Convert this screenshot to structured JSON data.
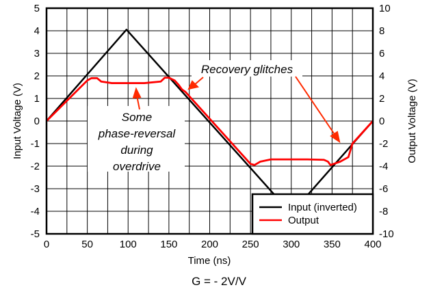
{
  "chart_data": {
    "type": "line",
    "xlabel": "Time (ns)",
    "ylabel": "Input Voltage (V)",
    "y2label": "Output Voltage (V)",
    "xlim": [
      0,
      400
    ],
    "ylim": [
      -5,
      5
    ],
    "y2lim": [
      -10,
      10
    ],
    "xticks": [
      0,
      50,
      100,
      150,
      200,
      250,
      300,
      350,
      400
    ],
    "yticks": [
      -5,
      -4,
      -3,
      -2,
      -1,
      0,
      1,
      2,
      3,
      4,
      5
    ],
    "y2ticks": [
      -10,
      -8,
      -6,
      -4,
      -2,
      0,
      2,
      4,
      6,
      8,
      10
    ],
    "grid": true,
    "legend_position": "bottom-right",
    "series": [
      {
        "name": "Input (inverted)",
        "axis": "left",
        "color": "#000000",
        "x": [
          0,
          98,
          300,
          400
        ],
        "y": [
          0,
          4.05,
          -4.1,
          0
        ]
      },
      {
        "name": "Output",
        "axis": "right",
        "color": "#ff0000",
        "x": [
          0,
          50,
          55,
          62,
          67,
          80,
          120,
          140,
          145,
          150,
          157,
          162,
          166,
          170,
          250,
          255,
          262,
          275,
          320,
          340,
          345,
          348,
          360,
          370,
          375,
          400
        ],
        "y": [
          0,
          3.6,
          3.8,
          3.8,
          3.5,
          3.36,
          3.36,
          3.5,
          3.84,
          3.84,
          3.6,
          3.2,
          2.8,
          2.6,
          -3.8,
          -3.9,
          -3.6,
          -3.4,
          -3.4,
          -3.44,
          -3.6,
          -3.9,
          -3.6,
          -3.2,
          -2.0,
          0
        ]
      }
    ],
    "annotations": [
      {
        "text": [
          "Some",
          "phase-reversal",
          "during",
          "overdrive"
        ]
      },
      {
        "text": "Recovery glitches"
      }
    ],
    "caption": "G =  - 2V/V"
  }
}
